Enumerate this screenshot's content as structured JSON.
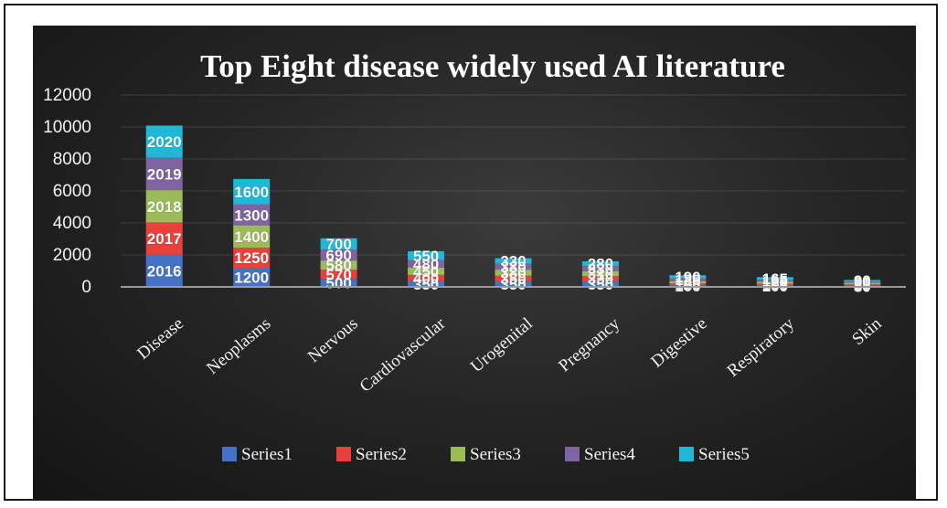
{
  "chart_data": {
    "type": "bar",
    "stacked": true,
    "title": "Top Eight disease widely used  AI literature",
    "xlabel": "",
    "ylabel": "",
    "ylim": [
      0,
      12000
    ],
    "yticks": [
      0,
      2000,
      4000,
      6000,
      8000,
      10000,
      12000
    ],
    "grid": true,
    "legend_position": "bottom",
    "categories": [
      "Disease",
      "Neoplasms",
      "Nervous",
      "Cardiovascular",
      "Urogenital",
      "Pregnancy",
      "Digestive",
      "Respiratory",
      "Skin"
    ],
    "series": [
      {
        "name": "Series1",
        "color": "#4472c4",
        "values": [
          2016,
          1200,
          500,
          350,
          350,
          350,
          100,
          100,
          80
        ],
        "labels": [
          "2016",
          "1200",
          "500",
          "350",
          "350",
          "350",
          "100",
          "100",
          "80"
        ]
      },
      {
        "name": "Series2",
        "color": "#e8413c",
        "values": [
          2017,
          1250,
          570,
          400,
          350,
          330,
          120,
          105,
          85
        ],
        "labels": [
          "2017",
          "1250",
          "570",
          "400",
          "350",
          "330",
          "120",
          "105",
          "85"
        ]
      },
      {
        "name": "Series3",
        "color": "#9bbb59",
        "values": [
          2018,
          1400,
          580,
          450,
          380,
          310,
          140,
          115,
          90
        ],
        "labels": [
          "2018",
          "1400",
          "580",
          "450",
          "380",
          "310",
          "140",
          "115",
          "90"
        ]
      },
      {
        "name": "Series4",
        "color": "#8064a2",
        "values": [
          2019,
          1300,
          690,
          480,
          380,
          330,
          180,
          125,
          90
        ],
        "labels": [
          "2019",
          "1300",
          "690",
          "480",
          "380",
          "330",
          "180",
          "125",
          "90"
        ]
      },
      {
        "name": "Series5",
        "color": "#1fb8d6",
        "values": [
          2020,
          1600,
          700,
          550,
          330,
          280,
          190,
          165,
          90
        ],
        "labels": [
          "2020",
          "1600",
          "700",
          "550",
          "330",
          "280",
          "190",
          "165",
          "90"
        ]
      }
    ]
  }
}
